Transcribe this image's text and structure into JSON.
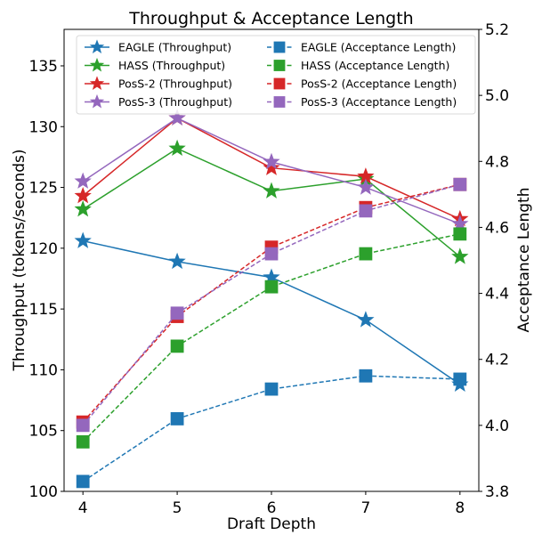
{
  "chart_data": {
    "type": "line",
    "title": "Throughput & Acceptance Length",
    "xlabel": "Draft Depth",
    "ylabel": "Throughput (tokens/seconds)",
    "y2label": "Acceptance Length",
    "x": [
      4,
      5,
      6,
      7,
      8
    ],
    "xlim": [
      3.8,
      8.2
    ],
    "ylim": [
      100,
      138
    ],
    "y2lim": [
      3.8,
      5.2
    ],
    "xticks": [
      "4",
      "5",
      "6",
      "7",
      "8"
    ],
    "yticks": [
      "100",
      "105",
      "110",
      "115",
      "120",
      "125",
      "130",
      "135"
    ],
    "y2ticks": [
      "3.8",
      "4.0",
      "4.2",
      "4.4",
      "4.6",
      "4.8",
      "5.0",
      "5.2"
    ],
    "grid": false,
    "legend_position": "top",
    "series": [
      {
        "name": "EAGLE (Throughput)",
        "axis": "left",
        "marker": "star",
        "style": "solid",
        "color": "#1f77b4",
        "values": [
          120.6,
          118.9,
          117.6,
          114.1,
          108.8
        ]
      },
      {
        "name": "HASS (Throughput)",
        "axis": "left",
        "marker": "star",
        "style": "solid",
        "color": "#2ca02c",
        "values": [
          123.2,
          128.2,
          124.7,
          125.7,
          119.3
        ]
      },
      {
        "name": "PosS-2 (Throughput)",
        "axis": "left",
        "marker": "star",
        "style": "solid",
        "color": "#d62728",
        "values": [
          124.3,
          130.7,
          126.6,
          125.9,
          122.4
        ]
      },
      {
        "name": "PosS-3 (Throughput)",
        "axis": "left",
        "marker": "star",
        "style": "solid",
        "color": "#9467bd",
        "values": [
          125.5,
          130.7,
          127.1,
          125.0,
          122.0
        ]
      },
      {
        "name": "EAGLE (Acceptance Length)",
        "axis": "right",
        "marker": "square",
        "style": "dashed",
        "color": "#1f77b4",
        "values": [
          3.83,
          4.02,
          4.11,
          4.15,
          4.14
        ]
      },
      {
        "name": "HASS (Acceptance Length)",
        "axis": "right",
        "marker": "square",
        "style": "dashed",
        "color": "#2ca02c",
        "values": [
          3.95,
          4.24,
          4.42,
          4.52,
          4.58
        ]
      },
      {
        "name": "PosS-2 (Acceptance Length)",
        "axis": "right",
        "marker": "square",
        "style": "dashed",
        "color": "#d62728",
        "values": [
          4.01,
          4.33,
          4.54,
          4.66,
          4.73
        ]
      },
      {
        "name": "PosS-3 (Acceptance Length)",
        "axis": "right",
        "marker": "square",
        "style": "dashed",
        "color": "#9467bd",
        "values": [
          4.0,
          4.34,
          4.52,
          4.65,
          4.73
        ]
      }
    ]
  }
}
